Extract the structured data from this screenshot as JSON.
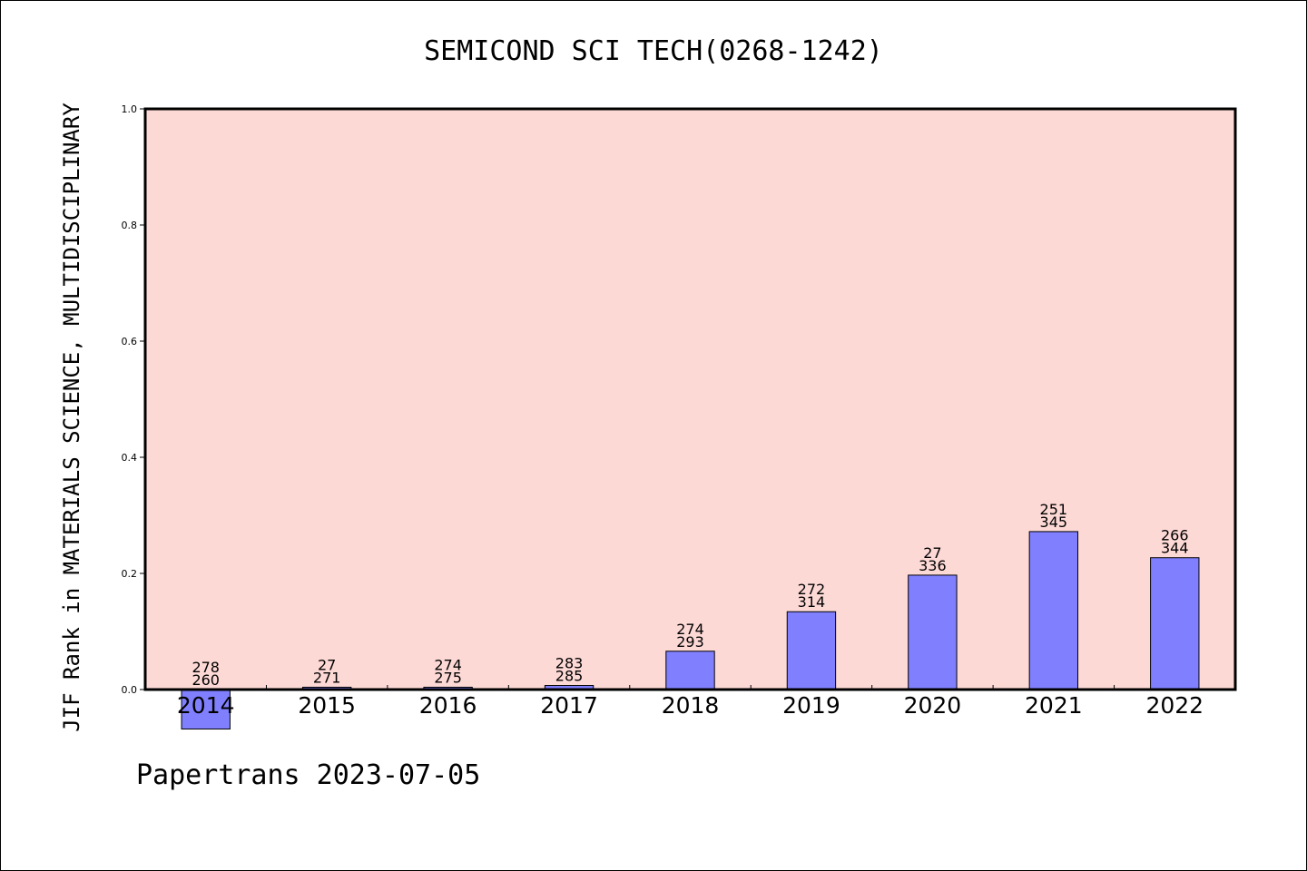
{
  "chart_data": {
    "type": "bar",
    "title": "SEMICOND SCI TECH(0268-1242)",
    "ylabel": "JIF Rank in MATERIALS SCIENCE, MULTIDISCIPLINARY",
    "xlabel": "",
    "ylim": [
      0.0,
      1.0
    ],
    "yticks": [
      0.0,
      0.2,
      0.4,
      0.6,
      0.8,
      1.0
    ],
    "ytick_labels": [
      "0.0",
      "0.2",
      "0.4",
      "0.6",
      "0.8",
      "1.0"
    ],
    "grid": false,
    "colors": {
      "plot_background": "#fdd9d6",
      "bar_fill": "#8080ff",
      "bar_stroke": "#000000",
      "axis": "#000000"
    },
    "categories": [
      "2014",
      "2015",
      "2016",
      "2017",
      "2018",
      "2019",
      "2020",
      "2021",
      "2022"
    ],
    "values": [
      -0.068,
      0.004,
      0.004,
      0.007,
      0.066,
      0.134,
      0.197,
      0.272,
      0.227
    ],
    "labels_top": [
      "278",
      "27",
      "274",
      "283",
      "274",
      "272",
      "27",
      "251",
      "266"
    ],
    "labels_bottom": [
      "260",
      "271",
      "275",
      "285",
      "293",
      "314",
      "336",
      "345",
      "344"
    ]
  },
  "footer": {
    "credit": "Papertrans 2023-07-05"
  }
}
